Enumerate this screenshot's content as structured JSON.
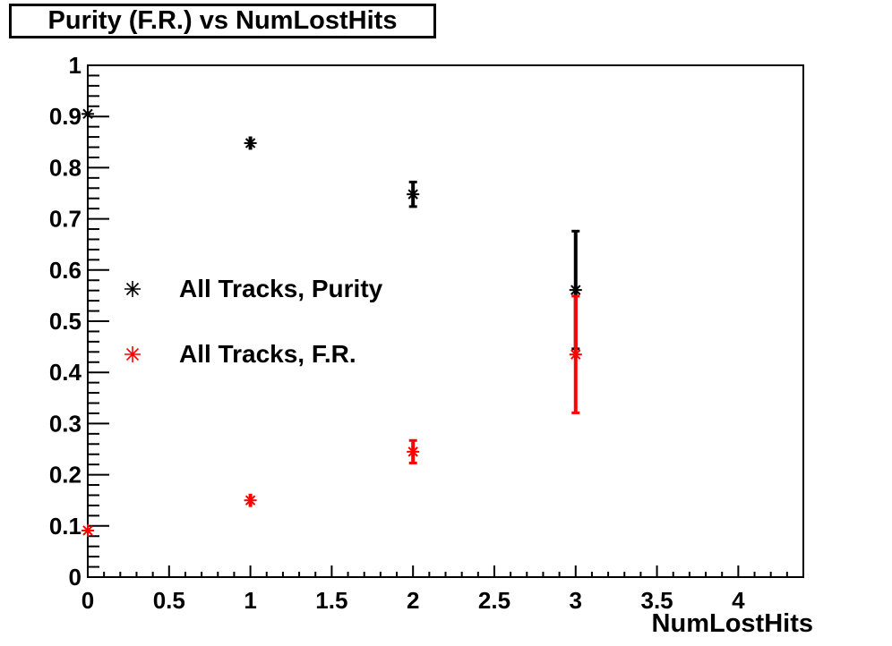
{
  "title": "Purity (F.R.) vs NumLostHits",
  "chart_data": {
    "type": "scatter",
    "title": "Purity (F.R.) vs NumLostHits",
    "xlabel": "NumLostHits",
    "ylabel": "",
    "xlim": [
      0,
      4.4
    ],
    "ylim": [
      0,
      1
    ],
    "grid": false,
    "background_color": "#ffffff",
    "axis_color": "#000000",
    "x_tick_values": [
      0,
      0.5,
      1,
      1.5,
      2,
      2.5,
      3,
      3.5,
      4
    ],
    "x_tick_labels": [
      "0",
      "0.5",
      "1",
      "1.5",
      "2",
      "2.5",
      "3",
      "3.5",
      "4"
    ],
    "x_minor_step": 0.1,
    "y_tick_values": [
      0,
      0.1,
      0.2,
      0.3,
      0.4,
      0.5,
      0.6,
      0.7,
      0.8,
      0.9,
      1
    ],
    "y_tick_labels": [
      "0",
      "0.1",
      "0.2",
      "0.3",
      "0.4",
      "0.5",
      "0.6",
      "0.7",
      "0.8",
      "0.9",
      "1"
    ],
    "y_minor_step": 0.02,
    "legend_position": "center-left",
    "marker_style": "eight-spoke-asterisk",
    "series": [
      {
        "name": "All Tracks, Purity",
        "color": "#000000",
        "marker": "eight-spoke-asterisk",
        "x": [
          0,
          1,
          2,
          3
        ],
        "y": [
          0.905,
          0.848,
          0.748,
          0.561
        ],
        "yerr": [
          0.004,
          0.013,
          0.024,
          0.115
        ]
      },
      {
        "name": "All Tracks, F.R.",
        "color": "#ff0000",
        "marker": "eight-spoke-asterisk",
        "x": [
          0,
          1,
          2,
          3
        ],
        "y": [
          0.091,
          0.15,
          0.245,
          0.435
        ],
        "yerr": [
          0.004,
          0.013,
          0.022,
          0.114
        ]
      }
    ]
  }
}
